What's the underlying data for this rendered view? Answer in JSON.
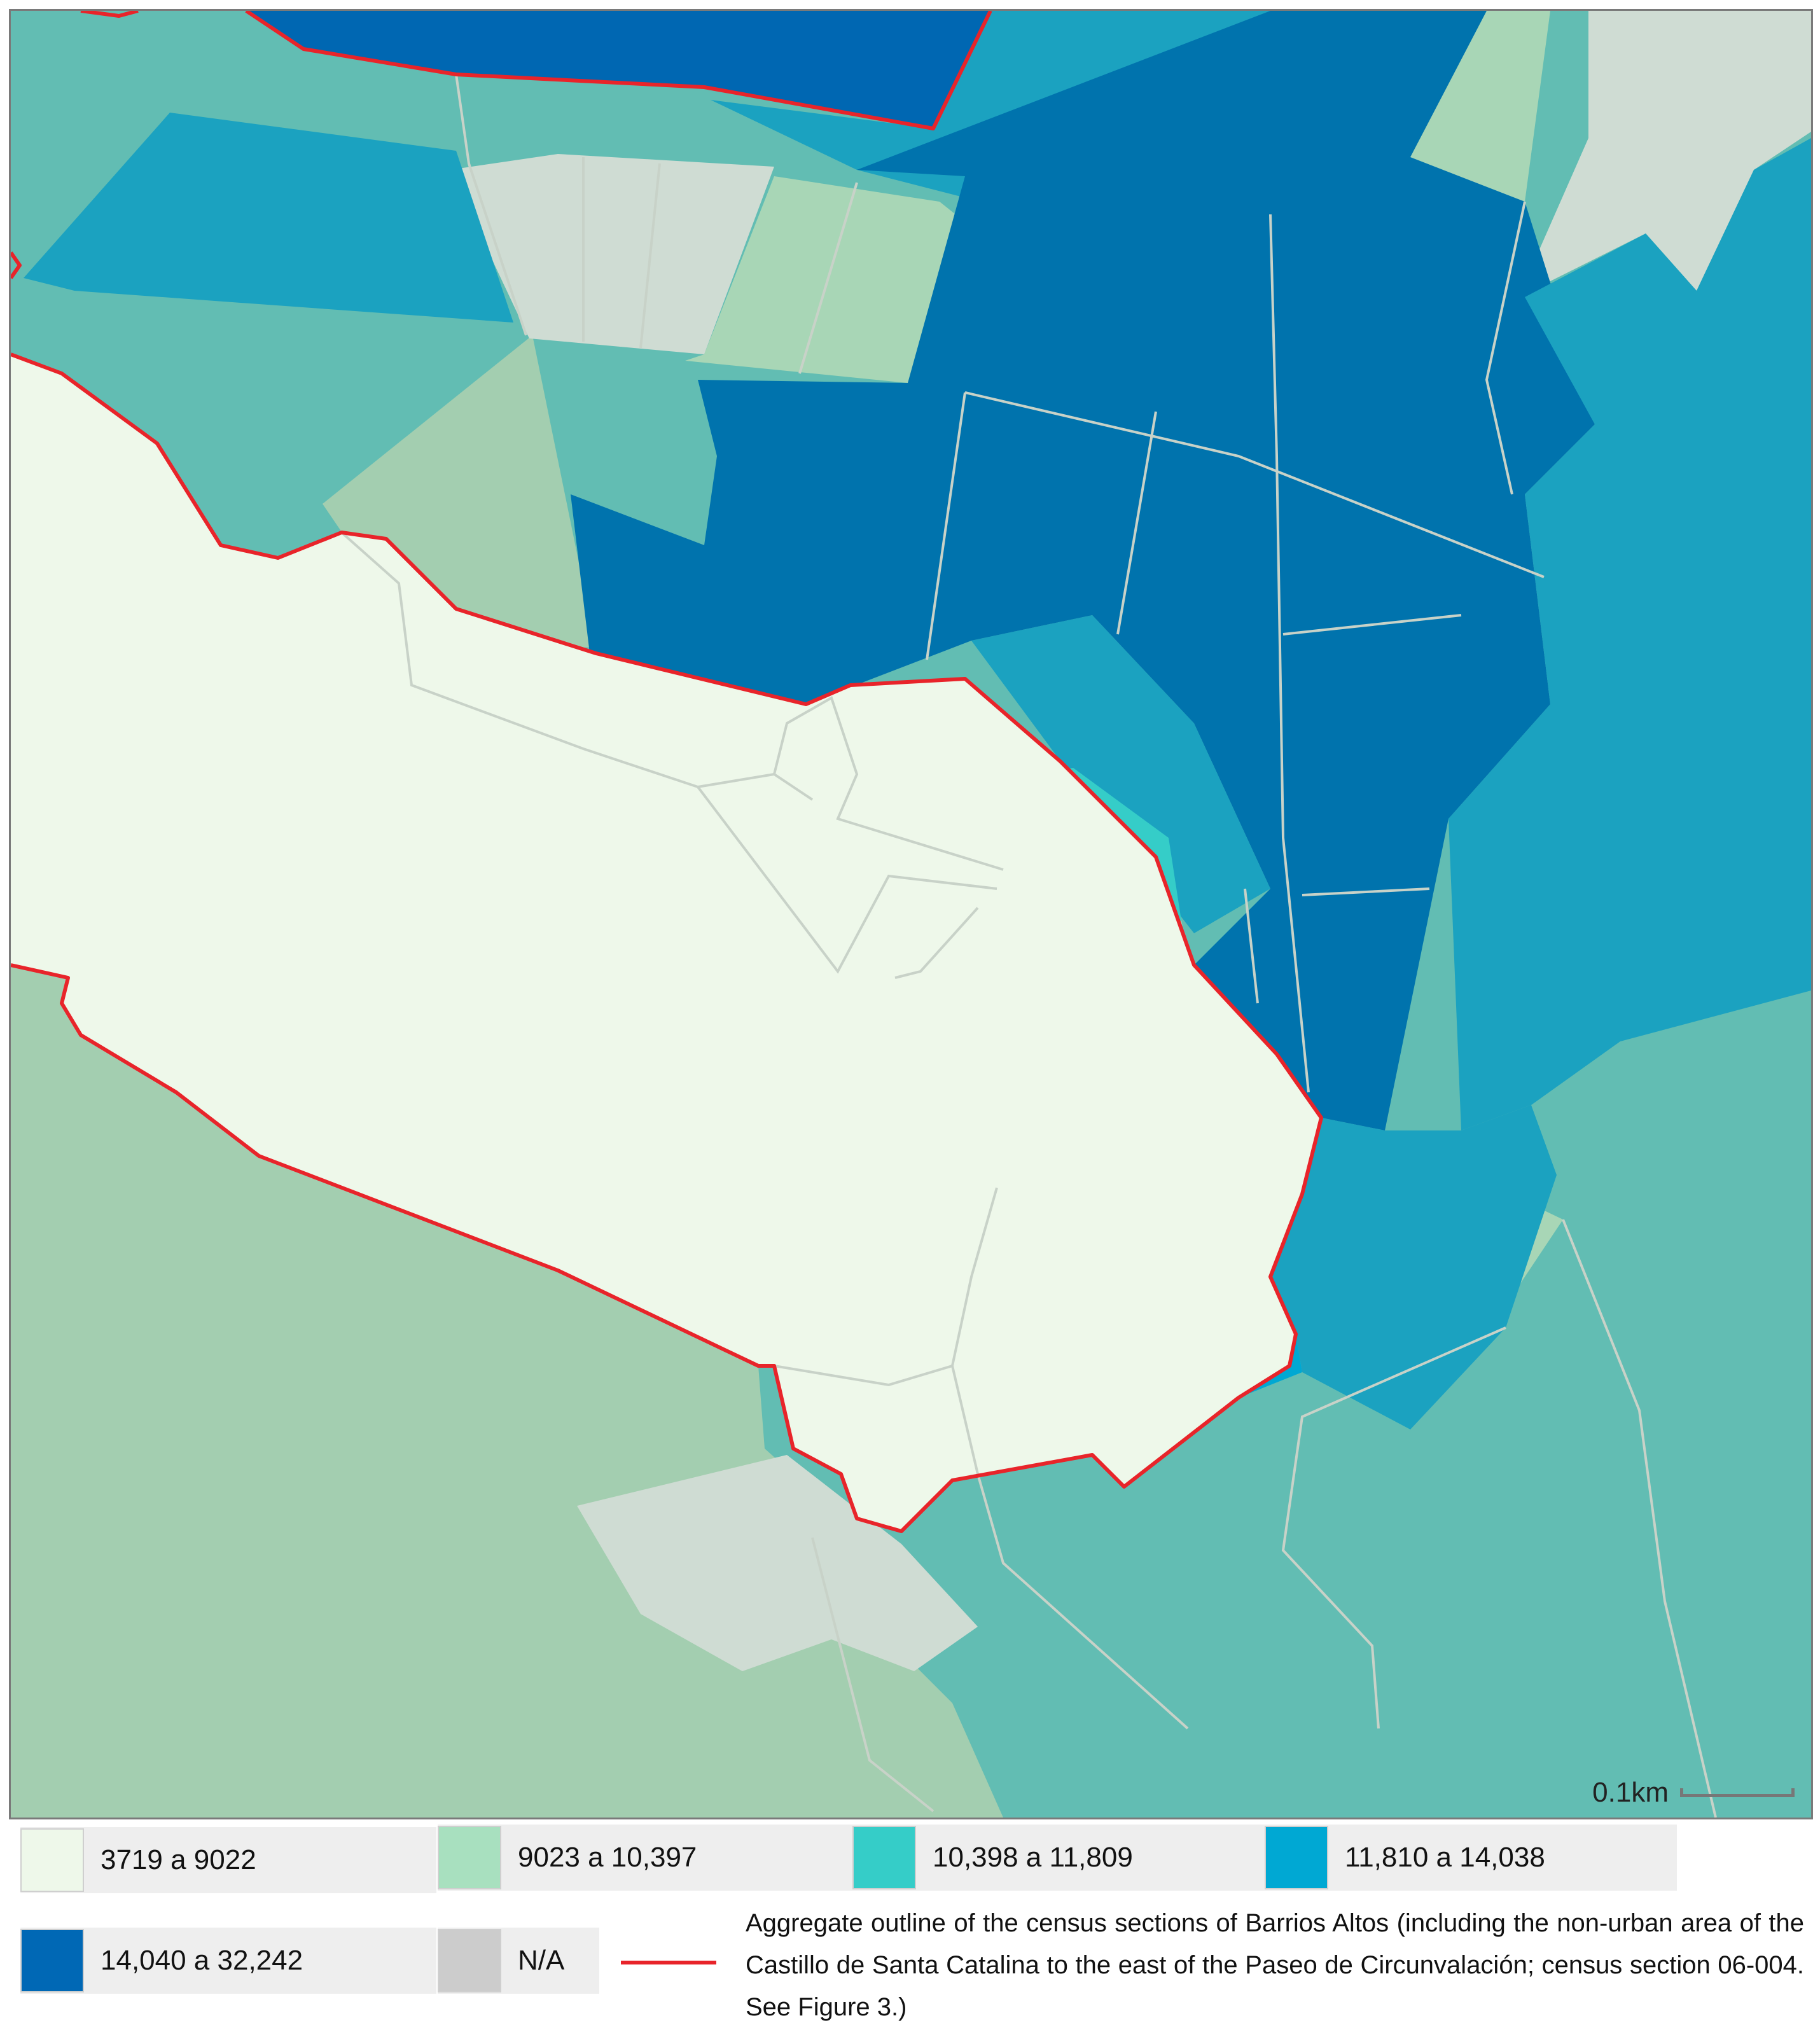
{
  "map": {
    "scale_label": "0.1km",
    "colors": {
      "class_1": "#eef8ea",
      "class_2": "#a8e0bf",
      "class_3": "#35cdc8",
      "class_4": "#00a8d3",
      "class_5": "#0068b5",
      "na": "#cccccc",
      "outline": "#e8242a"
    }
  },
  "legend": {
    "items": [
      {
        "label": "3719 a 9022",
        "color": "#eef8ea"
      },
      {
        "label": "9023 a 10,397",
        "color": "#a8e0bf"
      },
      {
        "label": "10,398 a 11,809",
        "color": "#35cdc8"
      },
      {
        "label": "11,810 a 14,038",
        "color": "#00a8d3"
      },
      {
        "label": "14,040 a 32,242",
        "color": "#0068b5"
      },
      {
        "label": "N/A",
        "color": "#cccccc"
      }
    ],
    "outline_description": "Aggregate outline of the census sections of Barrios Altos (including the non-urban area of the Castillo de Santa Catalina to the east of the Paseo de Circunvalación; census section 06-004. See Figure 3.)"
  }
}
